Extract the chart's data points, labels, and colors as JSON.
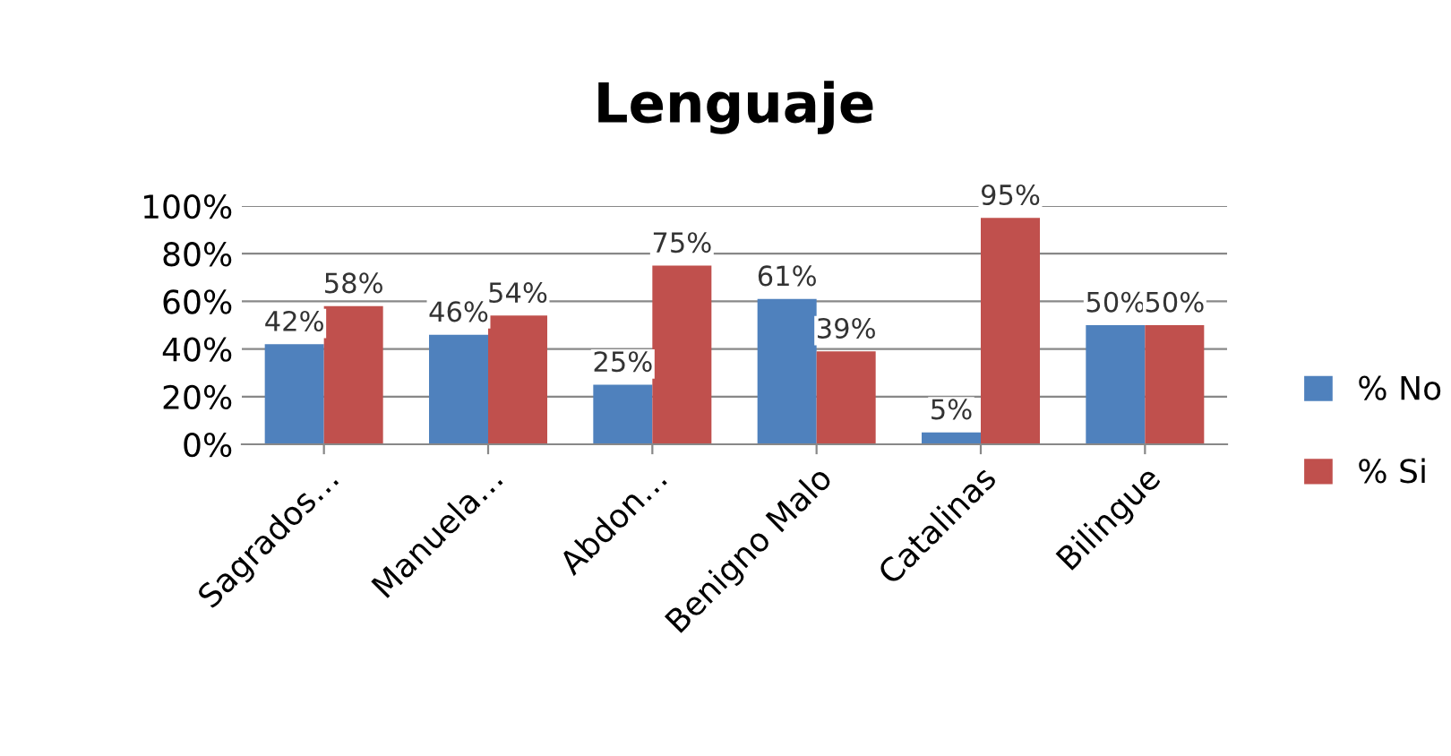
{
  "chart_data": {
    "type": "bar",
    "title": "Lenguaje",
    "categories": [
      "Sagrados…",
      "Manuela…",
      "Abdon…",
      "Benigno Malo",
      "Catalinas",
      "Bilingue"
    ],
    "series": [
      {
        "name": "% No",
        "color": "#4f81bd",
        "values": [
          42,
          46,
          25,
          61,
          5,
          50
        ],
        "value_labels": [
          "42%",
          "46%",
          "25%",
          "61%",
          "5%",
          "50%"
        ]
      },
      {
        "name": "% Si",
        "color": "#c0504d",
        "values": [
          58,
          54,
          75,
          39,
          95,
          50
        ],
        "value_labels": [
          "58%",
          "54%",
          "75%",
          "39%",
          "95%",
          "50%"
        ]
      }
    ],
    "ylim": [
      0,
      100
    ],
    "yticks": [
      {
        "value": 0,
        "label": "0%"
      },
      {
        "value": 20,
        "label": "20%"
      },
      {
        "value": 40,
        "label": "40%"
      },
      {
        "value": 60,
        "label": "60%"
      },
      {
        "value": 80,
        "label": "80%"
      },
      {
        "value": 100,
        "label": "100%"
      }
    ],
    "grid": "y",
    "legend": "right"
  }
}
